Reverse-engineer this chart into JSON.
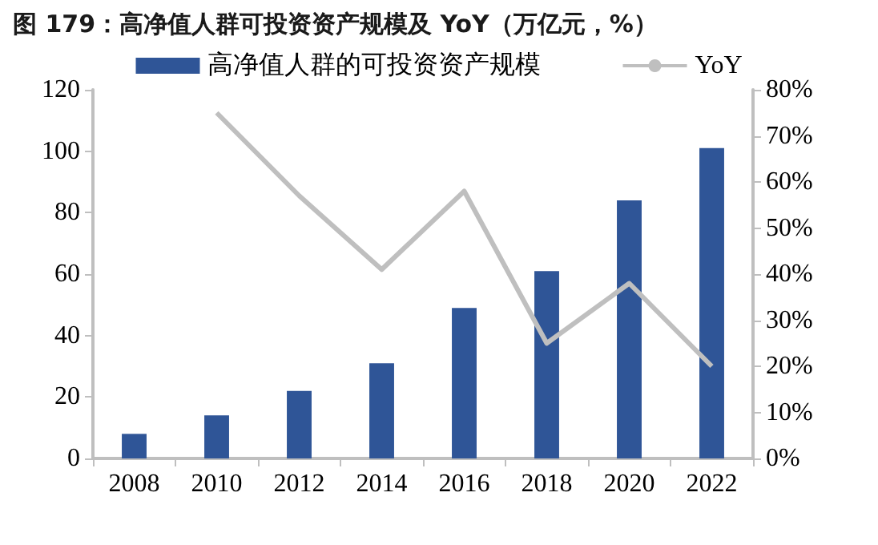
{
  "chart_data": {
    "type": "bar",
    "title": "图 179：高净值人群可投资资产规模及 YoY（万亿元，%）",
    "categories": [
      "2008",
      "2010",
      "2012",
      "2014",
      "2016",
      "2018",
      "2020",
      "2022"
    ],
    "series": [
      {
        "name": "高净值人群的可投资资产规模",
        "color": "#2f5597",
        "values": [
          8,
          14,
          22,
          31,
          49,
          61,
          84,
          101
        ]
      },
      {
        "name": "YoY",
        "type": "line",
        "axis": "y2",
        "color": "#bfbfbf",
        "values": [
          null,
          75,
          57,
          41,
          58,
          25,
          38,
          20
        ]
      }
    ],
    "ylim": [
      0,
      120
    ],
    "yticks": [
      0,
      20,
      40,
      60,
      80,
      100,
      120
    ],
    "y2lim": [
      0,
      80
    ],
    "y2ticks": [
      {
        "value": 0,
        "label": "0%"
      },
      {
        "value": 10,
        "label": "10%"
      },
      {
        "value": 20,
        "label": "20%"
      },
      {
        "value": 30,
        "label": "30%"
      },
      {
        "value": 40,
        "label": "40%"
      },
      {
        "value": 50,
        "label": "50%"
      },
      {
        "value": 60,
        "label": "60%"
      },
      {
        "value": 70,
        "label": "70%"
      },
      {
        "value": 80,
        "label": "80%"
      }
    ],
    "grid": false,
    "legend": "top",
    "marker": "none",
    "line_style": "solid"
  }
}
